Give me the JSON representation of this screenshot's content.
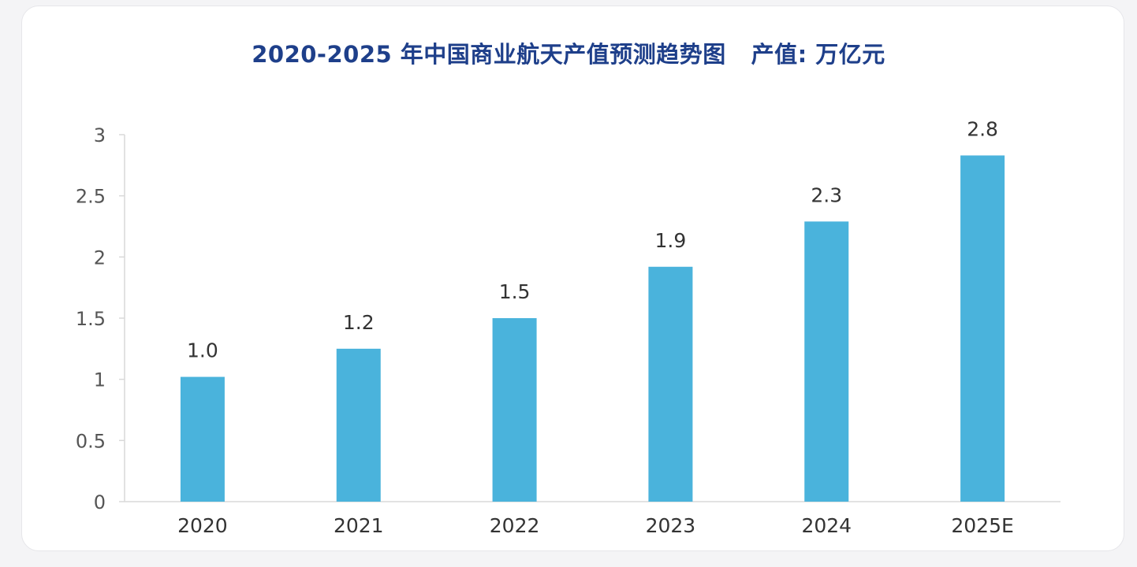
{
  "chart_data": {
    "type": "bar",
    "title": "2020-2025 年中国商业航天产值预测趋势图   产值: 万亿元",
    "xlabel": "",
    "ylabel": "",
    "categories": [
      "2020",
      "2021",
      "2022",
      "2023",
      "2024",
      "2025E"
    ],
    "values": [
      1.0,
      1.2,
      1.5,
      1.9,
      2.3,
      2.8
    ],
    "data_labels": [
      "1.0",
      "1.2",
      "1.5",
      "1.9",
      "2.3",
      "2.8"
    ],
    "plotted_values": [
      1.02,
      1.25,
      1.5,
      1.92,
      2.29,
      2.83
    ],
    "ylim": [
      0,
      3
    ],
    "yticks": [
      0,
      0.5,
      1,
      1.5,
      2,
      2.5,
      3
    ],
    "ytick_labels": [
      "0",
      "0.5",
      "1",
      "1.5",
      "2",
      "2.5",
      "3"
    ],
    "grid": false,
    "legend": "none",
    "bar_color": "#4ab3dc",
    "axis_color": "#d9d9d9",
    "title_color": "#1e3f8a"
  }
}
